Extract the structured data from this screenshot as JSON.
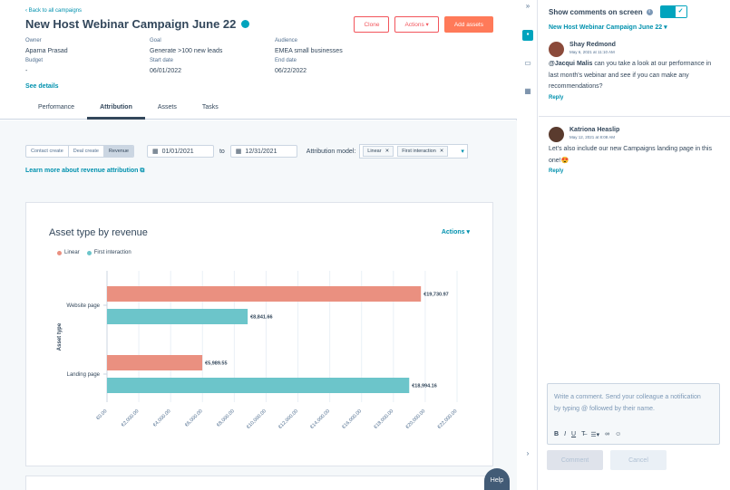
{
  "header": {
    "back_link": "‹ Back to all campaigns",
    "title": "New Host Webinar Campaign June 22",
    "clone_label": "Clone",
    "actions_label": "Actions ▾",
    "add_assets_label": "Add assets",
    "fields": {
      "owner_label": "Owner",
      "owner_value": "Aparna Prasad",
      "budget_label": "Budget",
      "budget_value": "-",
      "goal_label": "Goal",
      "goal_value": "Generate >100 new leads",
      "start_label": "Start date",
      "start_value": "06/01/2022",
      "audience_label": "Audience",
      "audience_value": "EMEA small businesses",
      "end_label": "End date",
      "end_value": "06/22/2022"
    },
    "see_details": "See details",
    "tabs": [
      "Performance",
      "Attribution",
      "Assets",
      "Tasks"
    ]
  },
  "filters": {
    "segments": [
      "Contact create",
      "Deal create",
      "Revenue"
    ],
    "start_date": "01/01/2021",
    "to_label": "to",
    "end_date": "12/31/2021",
    "model_label": "Attribution model:",
    "chips": [
      "Linear",
      "First interaction"
    ],
    "learn_more": "Learn more about revenue attribution"
  },
  "card": {
    "title": "Asset type by revenue",
    "actions_label": "Actions ▾"
  },
  "chart_data": {
    "type": "bar",
    "orientation": "horizontal",
    "title": "Asset type by revenue",
    "ylabel": "Asset type",
    "xlabel": "",
    "categories": [
      "Website page",
      "Landing page"
    ],
    "series": [
      {
        "name": "Linear",
        "color": "#ea9080",
        "values": [
          19730.97,
          5989.55
        ],
        "labels": [
          "€19,730.97",
          "€5,989.55"
        ]
      },
      {
        "name": "First interaction",
        "color": "#6cc5ca",
        "values": [
          8841.66,
          18994.16
        ],
        "labels": [
          "€8,841.66",
          "€18,994.16"
        ]
      }
    ],
    "xlim": [
      0,
      22000
    ],
    "x_ticks": [
      "€0.00",
      "€2,000.00",
      "€4,000.00",
      "€6,000.00",
      "€8,000.00",
      "€10,000.00",
      "€12,000.00",
      "€14,000.00",
      "€16,000.00",
      "€18,000.00",
      "€20,000.00",
      "€22,000.00"
    ],
    "legend": "top-left"
  },
  "help_label": "Help",
  "panel": {
    "show_comments_label": "Show comments on screen",
    "campaign_link": "New Host Webinar Campaign June 22 ▾",
    "comments": [
      {
        "author": "Shay Redmond",
        "date": "May 6, 2021 at 11:10 AM",
        "mention": "@Jacqui Malis",
        "body": " can you take a look at our performance in last month's webinar and see if you can make any recommendations?",
        "reply": "Reply"
      },
      {
        "author": "Katriona Heaslip",
        "date": "May 12, 2021 at 8:08 AM",
        "mention": "",
        "body": "Let's also include our new Campaigns landing page in this one!😍",
        "reply": "Reply"
      }
    ],
    "composer_placeholder": "Write a comment. Send your colleague a notification by typing @ followed by their name.",
    "comment_button": "Comment",
    "cancel_button": "Cancel"
  }
}
